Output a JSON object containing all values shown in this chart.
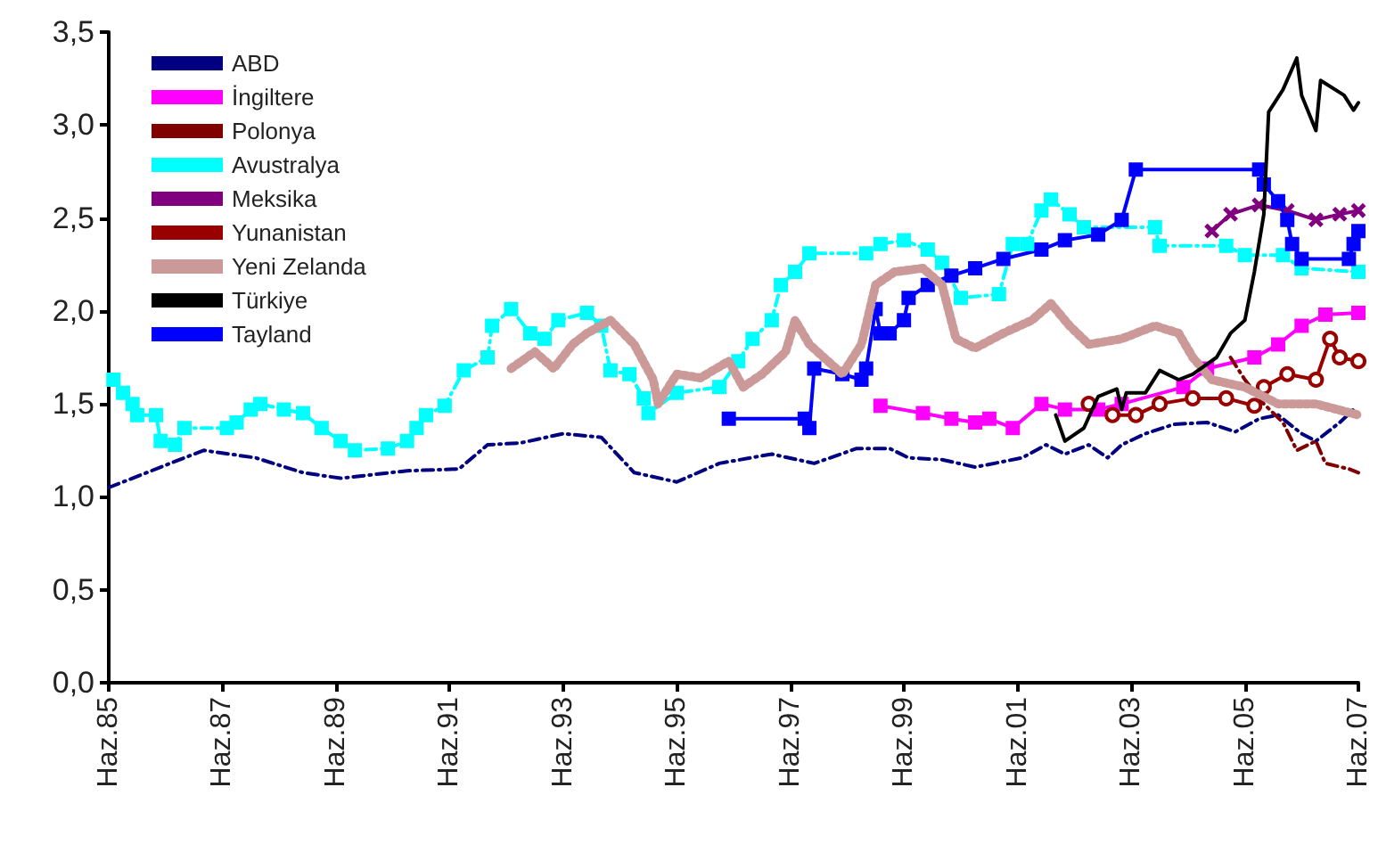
{
  "chart_data": {
    "type": "line",
    "xlim": [
      "1985-06",
      "2007-06"
    ],
    "ylim": [
      0,
      3.5
    ],
    "xticks": [
      {
        "value": "1985-06",
        "label": "Haz.85"
      },
      {
        "value": "1987-06",
        "label": "Haz.87"
      },
      {
        "value": "1989-06",
        "label": "Haz.89"
      },
      {
        "value": "1991-06",
        "label": "Haz.91"
      },
      {
        "value": "1993-06",
        "label": "Haz.93"
      },
      {
        "value": "1995-06",
        "label": "Haz.95"
      },
      {
        "value": "1997-06",
        "label": "Haz.97"
      },
      {
        "value": "1999-06",
        "label": "Haz.99"
      },
      {
        "value": "2001-06",
        "label": "Haz.01"
      },
      {
        "value": "2003-06",
        "label": "Haz.03"
      },
      {
        "value": "2005-06",
        "label": "Haz.05"
      },
      {
        "value": "2007-06",
        "label": "Haz.07"
      }
    ],
    "yticks": [
      {
        "value": 0,
        "label": "0,0"
      },
      {
        "value": 0.5,
        "label": "0,5"
      },
      {
        "value": 1,
        "label": "1,0"
      },
      {
        "value": 1.5,
        "label": "1,5"
      },
      {
        "value": 2,
        "label": "2,0"
      },
      {
        "value": 2.5,
        "label": "2,5"
      },
      {
        "value": 3,
        "label": "3,0"
      },
      {
        "value": 3.5,
        "label": "3,5"
      }
    ],
    "grid": false,
    "legend": "top left",
    "marker": "none",
    "line_style": "solid",
    "series": [
      {
        "name": "ABD",
        "color": "#000080",
        "line_style": "dashed",
        "x": [
          "1985-06",
          "1985-11",
          "1986-07",
          "1987-02",
          "1988-01",
          "1988-11",
          "1989-07",
          "1990-09",
          "1991-08",
          "1992-02",
          "1992-09",
          "1993-06",
          "1994-02",
          "1994-09",
          "1995-06",
          "1996-03",
          "1997-02",
          "1997-11",
          "1998-08",
          "1999-03",
          "1999-07",
          "2000-02",
          "2000-09",
          "2001-07",
          "2001-12",
          "2002-04",
          "2002-09",
          "2003-01",
          "2003-04",
          "2003-09",
          "2004-03",
          "2004-10",
          "2005-04",
          "2005-09",
          "2006-01",
          "2006-06",
          "2006-09",
          "2007-02",
          "2007-05"
        ],
        "values": [
          1.05,
          1.1,
          1.18,
          1.25,
          1.21,
          1.13,
          1.1,
          1.14,
          1.15,
          1.28,
          1.29,
          1.34,
          1.32,
          1.13,
          1.08,
          1.18,
          1.23,
          1.18,
          1.26,
          1.26,
          1.21,
          1.2,
          1.16,
          1.21,
          1.28,
          1.23,
          1.28,
          1.21,
          1.28,
          1.34,
          1.39,
          1.4,
          1.35,
          1.42,
          1.44,
          1.34,
          1.3,
          1.4,
          1.47
        ]
      },
      {
        "name": "İngiltere",
        "color": "#ff00ff",
        "marker": "square",
        "x": [
          "1999-01",
          "1999-10",
          "2000-04",
          "2000-09",
          "2000-12",
          "2001-05",
          "2001-11",
          "2002-04",
          "2002-11",
          "2003-04",
          "2004-05",
          "2004-10",
          "2005-08",
          "2006-01",
          "2006-06",
          "2006-11",
          "2007-06"
        ],
        "values": [
          1.49,
          1.45,
          1.42,
          1.4,
          1.42,
          1.37,
          1.5,
          1.47,
          1.47,
          1.5,
          1.59,
          1.69,
          1.75,
          1.82,
          1.92,
          1.98,
          1.99
        ]
      },
      {
        "name": "Polonya",
        "color": "#800000",
        "line_style": "dashed",
        "x": [
          "2005-03",
          "2005-06",
          "2005-10",
          "2006-02",
          "2006-05",
          "2006-09",
          "2006-11",
          "2007-04",
          "2007-06"
        ],
        "values": [
          1.75,
          1.63,
          1.5,
          1.4,
          1.25,
          1.3,
          1.18,
          1.15,
          1.13
        ]
      },
      {
        "name": "Avustralya",
        "color": "#00ffff",
        "marker": "square",
        "line_style": "dashed",
        "x": [
          "1985-07",
          "1985-09",
          "1985-11",
          "1985-12",
          "1986-04",
          "1986-05",
          "1986-08",
          "1986-10",
          "1987-07",
          "1987-09",
          "1987-12",
          "1988-02",
          "1988-07",
          "1988-11",
          "1989-03",
          "1989-07",
          "1989-10",
          "1990-05",
          "1990-09",
          "1990-11",
          "1991-01",
          "1991-05",
          "1991-09",
          "1992-02",
          "1992-03",
          "1992-07",
          "1992-11",
          "1993-02",
          "1993-05",
          "1993-11",
          "1994-02",
          "1994-04",
          "1994-08",
          "1994-11",
          "1994-12",
          "1995-06",
          "1996-03",
          "1996-07",
          "1996-10",
          "1997-02",
          "1997-04",
          "1997-07",
          "1997-10",
          "1998-10",
          "1999-01",
          "1999-06",
          "1999-11",
          "2000-02",
          "2000-06",
          "2001-02",
          "2001-05",
          "2001-08",
          "2001-11",
          "2002-01",
          "2002-05",
          "2002-08",
          "2003-11",
          "2003-12",
          "2005-02",
          "2005-06",
          "2006-02",
          "2006-06",
          "2007-06"
        ],
        "values": [
          1.63,
          1.56,
          1.5,
          1.44,
          1.44,
          1.3,
          1.28,
          1.37,
          1.37,
          1.4,
          1.47,
          1.5,
          1.47,
          1.45,
          1.37,
          1.3,
          1.25,
          1.26,
          1.3,
          1.37,
          1.44,
          1.49,
          1.68,
          1.75,
          1.92,
          2.01,
          1.88,
          1.85,
          1.95,
          1.99,
          1.92,
          1.68,
          1.66,
          1.53,
          1.45,
          1.56,
          1.59,
          1.73,
          1.85,
          1.95,
          2.14,
          2.21,
          2.31,
          2.31,
          2.36,
          2.38,
          2.33,
          2.26,
          2.07,
          2.09,
          2.36,
          2.36,
          2.54,
          2.6,
          2.52,
          2.45,
          2.45,
          2.35,
          2.35,
          2.3,
          2.3,
          2.23,
          2.21
        ]
      },
      {
        "name": "Meksika",
        "color": "#800080",
        "marker": "cross",
        "x": [
          "2004-11",
          "2005-03",
          "2005-09",
          "2006-03",
          "2006-09",
          "2007-02",
          "2007-06"
        ],
        "values": [
          2.43,
          2.52,
          2.57,
          2.54,
          2.49,
          2.52,
          2.54
        ]
      },
      {
        "name": "Yunanistan",
        "color": "#990000",
        "marker": "circle",
        "x": [
          "2002-09",
          "2003-02",
          "2003-07",
          "2003-12",
          "2004-07",
          "2005-02",
          "2005-08",
          "2005-10",
          "2006-03",
          "2006-09",
          "2006-12",
          "2007-02",
          "2007-06"
        ],
        "values": [
          1.5,
          1.44,
          1.44,
          1.5,
          1.53,
          1.53,
          1.49,
          1.59,
          1.66,
          1.63,
          1.85,
          1.75,
          1.73
        ]
      },
      {
        "name": "Yeni Zelanda",
        "color": "#cc9999",
        "line_style": "dotted",
        "x": [
          "1992-07",
          "1992-12",
          "1993-04",
          "1993-08",
          "1993-11",
          "1994-04",
          "1994-09",
          "1995-01",
          "1995-02",
          "1995-06",
          "1995-11",
          "1996-05",
          "1996-08",
          "1996-12",
          "1997-05",
          "1997-07",
          "1997-10",
          "1998-01",
          "1998-05",
          "1998-09",
          "1998-12",
          "1999-04",
          "1999-10",
          "2000-02",
          "2000-05",
          "2000-09",
          "2001-03",
          "2001-09",
          "2002-01",
          "2002-05",
          "2002-09",
          "2003-04",
          "2003-11",
          "2004-04",
          "2004-07",
          "2004-11",
          "2005-06",
          "2006-01",
          "2006-09",
          "2007-06"
        ],
        "values": [
          1.69,
          1.78,
          1.69,
          1.82,
          1.88,
          1.95,
          1.82,
          1.63,
          1.5,
          1.66,
          1.64,
          1.73,
          1.59,
          1.66,
          1.78,
          1.95,
          1.82,
          1.75,
          1.66,
          1.82,
          2.14,
          2.21,
          2.23,
          2.14,
          1.85,
          1.8,
          1.88,
          1.95,
          2.04,
          1.92,
          1.82,
          1.85,
          1.92,
          1.88,
          1.75,
          1.63,
          1.59,
          1.5,
          1.5,
          1.44
        ]
      },
      {
        "name": "Türkiye",
        "color": "#000000",
        "x": [
          "2002-02",
          "2002-04",
          "2002-08",
          "2002-11",
          "2003-03",
          "2003-04",
          "2003-05",
          "2003-09",
          "2003-12",
          "2004-04",
          "2004-07",
          "2004-12",
          "2005-03",
          "2005-06",
          "2005-08",
          "2005-10",
          "2005-11",
          "2006-02",
          "2006-05",
          "2006-06",
          "2006-09",
          "2006-10",
          "2007-03",
          "2007-05",
          "2007-06"
        ],
        "values": [
          1.44,
          1.3,
          1.37,
          1.54,
          1.58,
          1.47,
          1.56,
          1.56,
          1.68,
          1.63,
          1.66,
          1.75,
          1.88,
          1.95,
          2.21,
          2.52,
          3.07,
          3.19,
          3.36,
          3.16,
          2.97,
          3.24,
          3.16,
          3.08,
          3.12
        ]
      },
      {
        "name": "Tayland",
        "color": "#0000ff",
        "marker": "square",
        "x": [
          "1996-05",
          "1997-09",
          "1997-10",
          "1997-11",
          "1998-05",
          "1998-09",
          "1998-10",
          "1998-12",
          "1999-01",
          "1999-03",
          "1999-06",
          "1999-07",
          "1999-11",
          "2000-04",
          "2000-09",
          "2001-03",
          "2001-11",
          "2002-04",
          "2002-11",
          "2003-04",
          "2003-07",
          "2005-09",
          "2005-10",
          "2006-01",
          "2006-03",
          "2006-04",
          "2006-06",
          "2007-04",
          "2007-05",
          "2007-06"
        ],
        "values": [
          1.42,
          1.42,
          1.37,
          1.69,
          1.66,
          1.63,
          1.69,
          2.01,
          1.88,
          1.88,
          1.95,
          2.07,
          2.14,
          2.19,
          2.23,
          2.28,
          2.33,
          2.38,
          2.41,
          2.49,
          2.76,
          2.76,
          2.68,
          2.59,
          2.49,
          2.36,
          2.28,
          2.28,
          2.36,
          2.43
        ]
      }
    ]
  }
}
